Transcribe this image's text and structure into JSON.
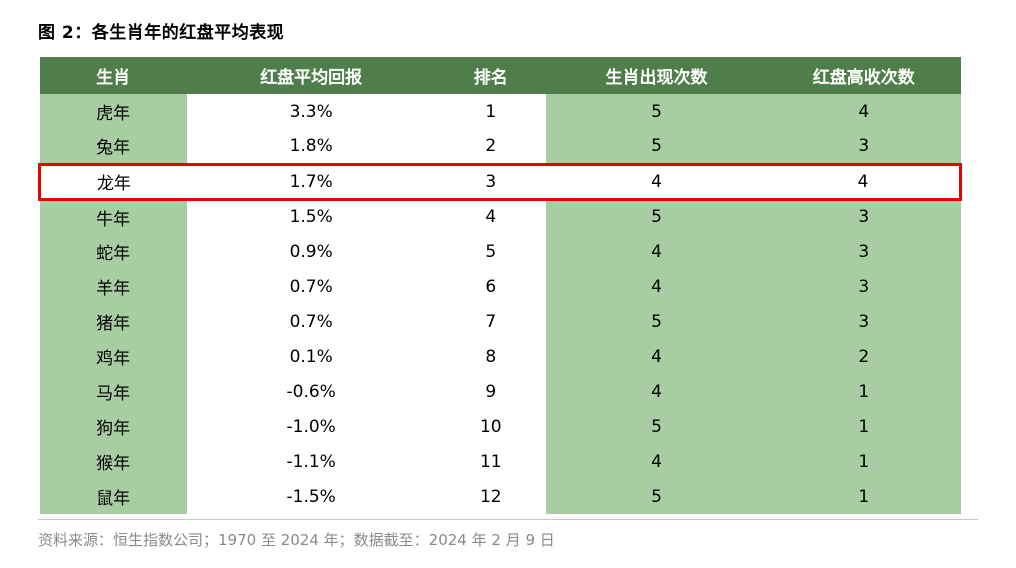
{
  "title": "图 2：各生肖年的红盘平均表现",
  "footer": "资料来源：恒生指数公司；1970 至 2024 年；数据截至：2024 年 2 月 9 日",
  "colors": {
    "header_bg": "#4f7e4a",
    "light_green": "#a9cda2",
    "highlight_border": "#e10600",
    "footer_text": "#8a8a8a"
  },
  "chart_data": {
    "type": "table",
    "title": "图 2：各生肖年的红盘平均表现",
    "columns": [
      "生肖",
      "红盘平均回报",
      "排名",
      "生肖出现次数",
      "红盘高收次数"
    ],
    "rows": [
      [
        "虎年",
        "3.3%",
        "1",
        "5",
        "4"
      ],
      [
        "兔年",
        "1.8%",
        "2",
        "5",
        "3"
      ],
      [
        "龙年",
        "1.7%",
        "3",
        "4",
        "4"
      ],
      [
        "牛年",
        "1.5%",
        "4",
        "5",
        "3"
      ],
      [
        "蛇年",
        "0.9%",
        "5",
        "4",
        "3"
      ],
      [
        "羊年",
        "0.7%",
        "6",
        "4",
        "3"
      ],
      [
        "猪年",
        "0.7%",
        "7",
        "5",
        "3"
      ],
      [
        "鸡年",
        "0.1%",
        "8",
        "4",
        "2"
      ],
      [
        "马年",
        "-0.6%",
        "9",
        "4",
        "1"
      ],
      [
        "狗年",
        "-1.0%",
        "10",
        "5",
        "1"
      ],
      [
        "猴年",
        "-1.1%",
        "11",
        "4",
        "1"
      ],
      [
        "鼠年",
        "-1.5%",
        "12",
        "5",
        "1"
      ]
    ],
    "highlighted_row": "龙年",
    "green_columns": [
      0,
      3,
      4
    ]
  }
}
